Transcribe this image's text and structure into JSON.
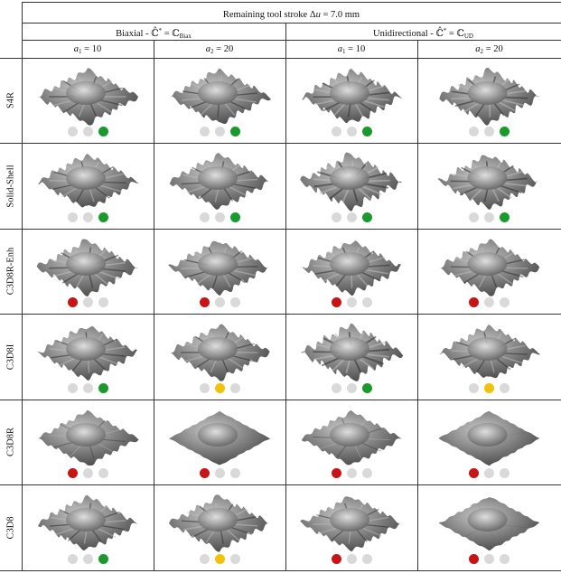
{
  "table": {
    "title_prefix": "Remaining tool stroke Δ",
    "title_var": "u",
    "title_suffix": " = 7.0 mm",
    "groups": [
      {
        "label": "Biaxial - ",
        "tensor": "ℂ̂",
        "mid": " = ℂ",
        "subscript": "Biax"
      },
      {
        "label": "Unidirectional - ",
        "tensor": "ℂ̂",
        "mid": " = ℂ",
        "subscript": "UD"
      }
    ],
    "columns": [
      {
        "var": "a",
        "sub": "1",
        "value": " = 10"
      },
      {
        "var": "a",
        "sub": "2",
        "value": " = 20"
      },
      {
        "var": "a",
        "sub": "1",
        "value": " = 10"
      },
      {
        "var": "a",
        "sub": "2",
        "value": " = 20"
      }
    ],
    "rows": [
      {
        "label": "S4R",
        "cells": [
          [
            "grey",
            "grey",
            "green"
          ],
          [
            "grey",
            "grey",
            "green"
          ],
          [
            "grey",
            "grey",
            "green"
          ],
          [
            "grey",
            "grey",
            "green"
          ]
        ]
      },
      {
        "label": "Solid-Shell",
        "cells": [
          [
            "grey",
            "grey",
            "green"
          ],
          [
            "grey",
            "grey",
            "green"
          ],
          [
            "grey",
            "grey",
            "green"
          ],
          [
            "grey",
            "grey",
            "green"
          ]
        ]
      },
      {
        "label": "C3D8R-Enh",
        "cells": [
          [
            "red",
            "grey",
            "grey"
          ],
          [
            "red",
            "grey",
            "grey"
          ],
          [
            "red",
            "grey",
            "grey"
          ],
          [
            "red",
            "grey",
            "grey"
          ]
        ]
      },
      {
        "label": "C3D8I",
        "cells": [
          [
            "grey",
            "grey",
            "green"
          ],
          [
            "grey",
            "yellow",
            "grey"
          ],
          [
            "grey",
            "grey",
            "green"
          ],
          [
            "grey",
            "yellow",
            "grey"
          ]
        ]
      },
      {
        "label": "C3D8R",
        "cells": [
          [
            "red",
            "grey",
            "grey"
          ],
          [
            "red",
            "grey",
            "grey"
          ],
          [
            "red",
            "grey",
            "grey"
          ],
          [
            "red",
            "grey",
            "grey"
          ]
        ]
      },
      {
        "label": "C3D8",
        "cells": [
          [
            "grey",
            "grey",
            "green"
          ],
          [
            "grey",
            "yellow",
            "grey"
          ],
          [
            "red",
            "grey",
            "grey"
          ],
          [
            "red",
            "grey",
            "grey"
          ]
        ]
      }
    ],
    "surface_wrinkle": [
      [
        1.0,
        1.0,
        1.2,
        1.2
      ],
      [
        1.0,
        1.0,
        1.4,
        1.2
      ],
      [
        1.1,
        1.0,
        1.1,
        1.0
      ],
      [
        1.0,
        1.0,
        1.4,
        1.0
      ],
      [
        0.7,
        0.15,
        0.7,
        0.2
      ],
      [
        1.0,
        1.0,
        0.9,
        0.3
      ]
    ]
  },
  "colors": {
    "grey": "#d9d9d9",
    "green": "#1a9a2c",
    "red": "#c81414",
    "yellow": "#f2c10a",
    "surface_light": "#c9c9c9",
    "surface_dark": "#3d3d3d"
  }
}
